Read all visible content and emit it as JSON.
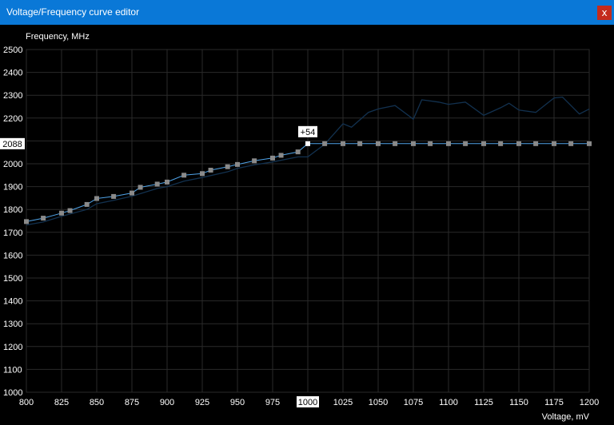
{
  "window": {
    "title": "Voltage/Frequency curve editor",
    "close_label": "x"
  },
  "colors": {
    "titlebar": "#0a78d7",
    "close": "#c42b1c",
    "grid": "#2a2a2a",
    "curve": "#4fa3e8",
    "default_curve": "#12314f",
    "point": "#8a8a8a"
  },
  "chart_data": {
    "type": "line",
    "ylabel": "Frequency, MHz",
    "xlabel": "Voltage, mV",
    "xlim": [
      800,
      1200
    ],
    "ylim": [
      1000,
      2500
    ],
    "x_ticks": [
      "800",
      "825",
      "850",
      "875",
      "900",
      "925",
      "950",
      "975",
      "1000",
      "1025",
      "1050",
      "1075",
      "1100",
      "1125",
      "1150",
      "1175",
      "1200"
    ],
    "y_ticks": [
      "2500",
      "2400",
      "2300",
      "2200",
      "2100",
      "2000",
      "1900",
      "1800",
      "1700",
      "1600",
      "1500",
      "1400",
      "1300",
      "1200",
      "1100",
      "1000"
    ],
    "selected": {
      "voltage": 1000,
      "frequency": 2088,
      "voltage_label": "1000",
      "frequency_label": "2088",
      "offset_label": "+54"
    },
    "series": [
      {
        "points": [
          [
            800,
            1747
          ],
          [
            812,
            1762
          ],
          [
            825,
            1784
          ],
          [
            831,
            1795
          ],
          [
            843,
            1822
          ],
          [
            850,
            1848
          ],
          [
            862,
            1857
          ],
          [
            875,
            1872
          ],
          [
            881,
            1897
          ],
          [
            893,
            1911
          ],
          [
            900,
            1920
          ],
          [
            912,
            1950
          ],
          [
            925,
            1957
          ],
          [
            931,
            1972
          ],
          [
            943,
            1987
          ],
          [
            950,
            1997
          ],
          [
            962,
            2013
          ],
          [
            975,
            2025
          ],
          [
            981,
            2037
          ],
          [
            993,
            2052
          ],
          [
            1000,
            2088
          ],
          [
            1012,
            2088
          ],
          [
            1025,
            2088
          ],
          [
            1037,
            2088
          ],
          [
            1050,
            2088
          ],
          [
            1062,
            2088
          ],
          [
            1075,
            2088
          ],
          [
            1087,
            2088
          ],
          [
            1100,
            2088
          ],
          [
            1112,
            2088
          ],
          [
            1125,
            2088
          ],
          [
            1137,
            2088
          ],
          [
            1150,
            2088
          ],
          [
            1162,
            2088
          ],
          [
            1175,
            2088
          ],
          [
            1187,
            2088
          ],
          [
            1200,
            2088
          ]
        ]
      },
      {
        "points": [
          [
            800,
            1732
          ],
          [
            812,
            1745
          ],
          [
            825,
            1770
          ],
          [
            843,
            1800
          ],
          [
            850,
            1825
          ],
          [
            862,
            1840
          ],
          [
            875,
            1858
          ],
          [
            893,
            1892
          ],
          [
            900,
            1900
          ],
          [
            912,
            1924
          ],
          [
            925,
            1940
          ],
          [
            943,
            1965
          ],
          [
            950,
            1980
          ],
          [
            962,
            1995
          ],
          [
            975,
            2008
          ],
          [
            993,
            2030
          ],
          [
            1000,
            2030
          ],
          [
            1012,
            2085
          ],
          [
            1025,
            2175
          ],
          [
            1031,
            2160
          ],
          [
            1043,
            2225
          ],
          [
            1050,
            2240
          ],
          [
            1062,
            2255
          ],
          [
            1075,
            2195
          ],
          [
            1081,
            2280
          ],
          [
            1093,
            2270
          ],
          [
            1100,
            2260
          ],
          [
            1112,
            2270
          ],
          [
            1125,
            2212
          ],
          [
            1137,
            2245
          ],
          [
            1143,
            2265
          ],
          [
            1150,
            2235
          ],
          [
            1162,
            2225
          ],
          [
            1175,
            2288
          ],
          [
            1181,
            2292
          ],
          [
            1193,
            2218
          ],
          [
            1200,
            2240
          ]
        ]
      }
    ]
  }
}
